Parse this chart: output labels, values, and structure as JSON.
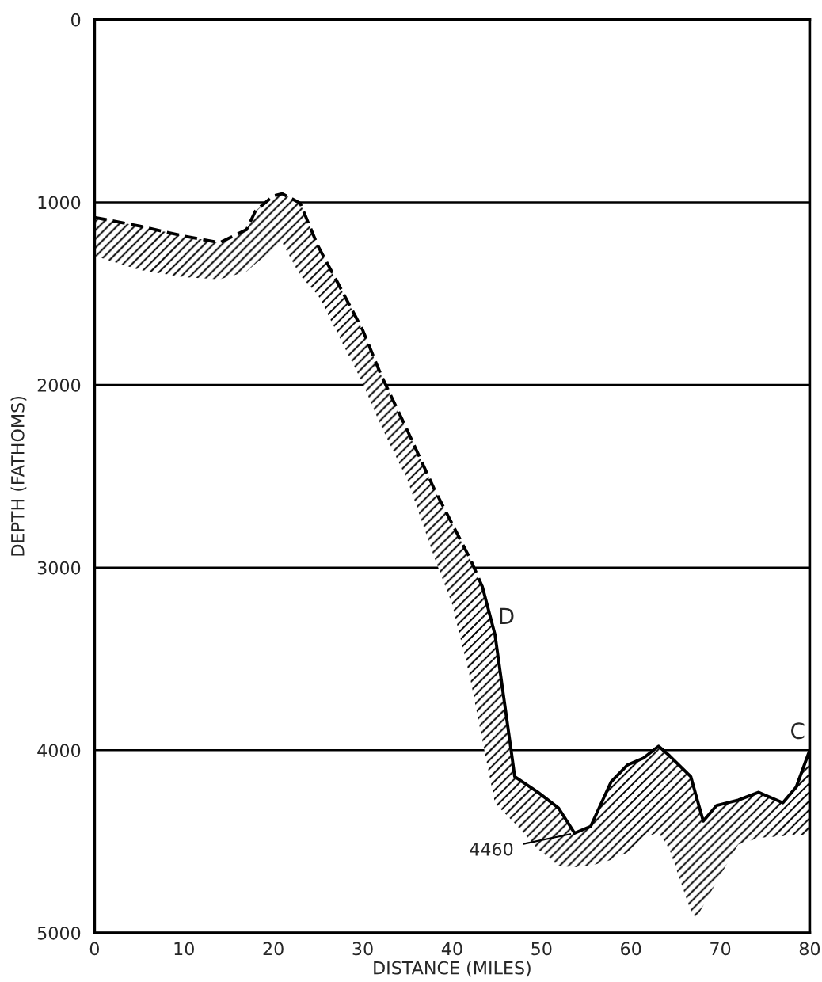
{
  "chart_data": {
    "type": "line",
    "xlabel": "DISTANCE (MILES)",
    "ylabel": "DEPTH (FATHOMS)",
    "xlim": [
      0,
      80
    ],
    "xticks": [
      0,
      10,
      20,
      30,
      40,
      50,
      60,
      70,
      80
    ],
    "ylim": [
      5000,
      0
    ],
    "yticks": [
      0,
      1000,
      2000,
      3000,
      4000,
      5000
    ],
    "grid": "y",
    "series": [
      {
        "color": "#000000",
        "line_style": "dashed",
        "x": [
          0,
          5,
          10,
          14,
          17,
          18,
          20,
          21,
          23,
          25,
          27,
          30,
          32,
          35,
          38,
          40,
          42,
          43.4
        ],
        "values": [
          1083,
          1130,
          1185,
          1221,
          1150,
          1048,
          965,
          953,
          1005,
          1240,
          1422,
          1700,
          1940,
          2250,
          2570,
          2760,
          2950,
          3107
        ],
        "lower": [
          1293,
          1370,
          1410,
          1422,
          1380,
          1336,
          1260,
          1221,
          1400,
          1509,
          1700,
          1990,
          2220,
          2520,
          2943,
          3200,
          3600,
          3950
        ],
        "upper": [
          1083,
          1130,
          1185,
          1221,
          1150,
          1048,
          965,
          953,
          1005,
          1240,
          1422,
          1700,
          1940,
          2250,
          2570,
          2760,
          2950,
          3107
        ]
      },
      {
        "color": "#000000",
        "line_style": "solid",
        "x": [
          43.4,
          44.8,
          46.6,
          47,
          49.6,
          51.9,
          53.7,
          55.5,
          57.8,
          59.6,
          61.4,
          63.1,
          64.3,
          66.7,
          67.3,
          68.1,
          69.6,
          72,
          74.3,
          77,
          78.5,
          80
        ],
        "values": [
          3107,
          3368,
          4000,
          4144,
          4230,
          4316,
          4454,
          4417,
          4172,
          4081,
          4043,
          3978,
          4029,
          4144,
          4250,
          4388,
          4302,
          4273,
          4230,
          4288,
          4201,
          4000
        ],
        "lower": [
          3950,
          4290,
          4380,
          4400,
          4540,
          4633,
          4640,
          4633,
          4600,
          4560,
          4480,
          4450,
          4540,
          4880,
          4920,
          4850,
          4719,
          4517,
          4480,
          4470,
          4465,
          4460
        ],
        "upper": [
          3107,
          3368,
          4000,
          4144,
          4230,
          4316,
          4454,
          4417,
          4172,
          4081,
          4043,
          3978,
          4029,
          4144,
          4250,
          4388,
          4302,
          4273,
          4230,
          4288,
          4201,
          4000
        ]
      }
    ],
    "annotations": [
      {
        "text": "D",
        "x": 43.4,
        "y": 3107
      },
      {
        "text": "C",
        "x": 80,
        "y": 4000
      },
      {
        "text": "4460",
        "x": 53.7,
        "y": 4454
      }
    ]
  }
}
